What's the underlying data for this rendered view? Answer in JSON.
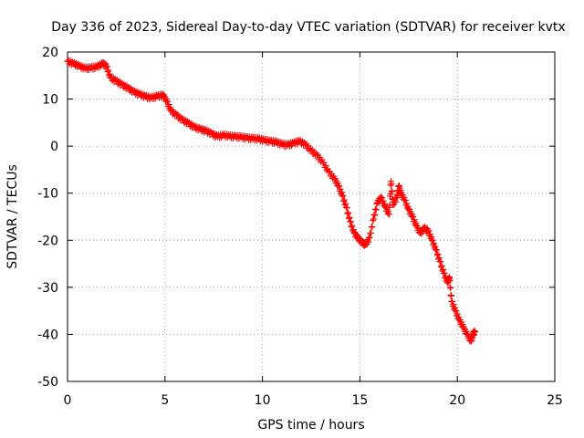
{
  "chart_data": {
    "type": "scatter",
    "title": "Day 336 of 2023, Sidereal Day-to-day VTEC variation (SDTVAR) for receiver kvtx",
    "xlabel": "GPS time / hours",
    "ylabel": "SDTVAR / TECUs",
    "xlim": [
      0,
      25
    ],
    "ylim": [
      -50,
      20
    ],
    "xticks": [
      0,
      5,
      10,
      15,
      20,
      25
    ],
    "yticks": [
      20,
      10,
      0,
      -10,
      -20,
      -30,
      -40,
      -50
    ],
    "grid": true,
    "marker": "+",
    "series_color": "#ff0000",
    "series": [
      {
        "name": "SDTVAR",
        "points": [
          [
            0.0,
            18.0
          ],
          [
            0.3,
            17.5
          ],
          [
            0.6,
            17.0
          ],
          [
            0.9,
            16.5
          ],
          [
            1.2,
            16.6
          ],
          [
            1.5,
            16.8
          ],
          [
            1.8,
            17.5
          ],
          [
            2.0,
            17.0
          ],
          [
            2.2,
            14.5
          ],
          [
            2.5,
            13.8
          ],
          [
            2.8,
            13.0
          ],
          [
            3.1,
            12.3
          ],
          [
            3.4,
            11.5
          ],
          [
            3.7,
            11.0
          ],
          [
            4.0,
            10.5
          ],
          [
            4.3,
            10.2
          ],
          [
            4.6,
            10.6
          ],
          [
            4.9,
            10.8
          ],
          [
            5.1,
            9.5
          ],
          [
            5.3,
            7.5
          ],
          [
            5.6,
            6.5
          ],
          [
            5.9,
            5.5
          ],
          [
            6.2,
            4.8
          ],
          [
            6.5,
            4.0
          ],
          [
            6.8,
            3.6
          ],
          [
            7.1,
            3.2
          ],
          [
            7.4,
            2.6
          ],
          [
            7.7,
            2.0
          ],
          [
            8.0,
            2.3
          ],
          [
            8.3,
            2.1
          ],
          [
            8.6,
            2.0
          ],
          [
            8.9,
            1.9
          ],
          [
            9.2,
            1.7
          ],
          [
            9.5,
            1.6
          ],
          [
            9.8,
            1.5
          ],
          [
            10.1,
            1.2
          ],
          [
            10.4,
            1.0
          ],
          [
            10.7,
            0.8
          ],
          [
            11.0,
            0.4
          ],
          [
            11.3,
            0.2
          ],
          [
            11.6,
            0.6
          ],
          [
            11.9,
            1.0
          ],
          [
            12.2,
            0.3
          ],
          [
            12.5,
            -1.0
          ],
          [
            12.8,
            -2.0
          ],
          [
            13.1,
            -3.5
          ],
          [
            13.4,
            -5.5
          ],
          [
            13.7,
            -7.0
          ],
          [
            13.9,
            -8.5
          ],
          [
            14.1,
            -10.5
          ],
          [
            14.3,
            -13.0
          ],
          [
            14.5,
            -16.0
          ],
          [
            14.7,
            -18.5
          ],
          [
            14.9,
            -19.5
          ],
          [
            15.1,
            -20.5
          ],
          [
            15.3,
            -21.0
          ],
          [
            15.5,
            -19.5
          ],
          [
            15.7,
            -15.5
          ],
          [
            15.9,
            -12.0
          ],
          [
            16.1,
            -11.0
          ],
          [
            16.3,
            -13.0
          ],
          [
            16.5,
            -14.5
          ],
          [
            16.6,
            -7.5
          ],
          [
            16.7,
            -12.5
          ],
          [
            16.9,
            -11.0
          ],
          [
            17.0,
            -8.5
          ],
          [
            17.1,
            -10.0
          ],
          [
            17.3,
            -11.5
          ],
          [
            17.5,
            -13.5
          ],
          [
            17.7,
            -15.0
          ],
          [
            17.9,
            -17.0
          ],
          [
            18.1,
            -18.5
          ],
          [
            18.3,
            -17.5
          ],
          [
            18.5,
            -18.0
          ],
          [
            18.7,
            -20.0
          ],
          [
            18.9,
            -22.0
          ],
          [
            19.1,
            -24.5
          ],
          [
            19.3,
            -27.0
          ],
          [
            19.5,
            -29.0
          ],
          [
            19.6,
            -28.0
          ],
          [
            19.7,
            -33.0
          ],
          [
            19.9,
            -35.0
          ],
          [
            20.1,
            -37.0
          ],
          [
            20.3,
            -38.5
          ],
          [
            20.5,
            -40.0
          ],
          [
            20.7,
            -41.5
          ],
          [
            20.8,
            -40.0
          ],
          [
            20.9,
            -39.5
          ]
        ]
      }
    ]
  }
}
